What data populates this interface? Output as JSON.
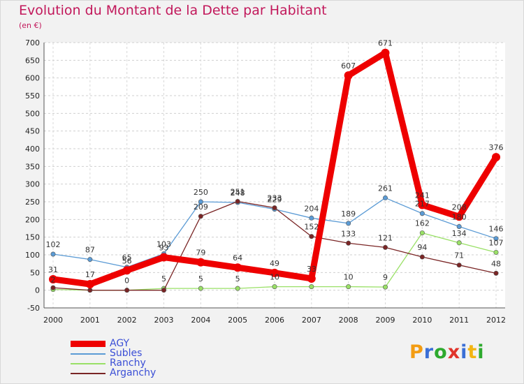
{
  "title": "Evolution du Montant de la Dette par Habitant",
  "unit": "(en €)",
  "brand": {
    "letters": [
      "P",
      "r",
      "o",
      "x",
      "i",
      "t",
      "i"
    ],
    "colors": [
      "#f39c12",
      "#3b6fd6",
      "#2eaa2e",
      "#e0342b",
      "#3b6fd6",
      "#f3b512",
      "#2eaa2e"
    ]
  },
  "chart_data": {
    "type": "line",
    "title": "Evolution du Montant de la Dette par Habitant",
    "ylabel": "(en €)",
    "xlabel": "",
    "x": [
      "2000",
      "2001",
      "2002",
      "2003",
      "2004",
      "2005",
      "2006",
      "2007",
      "2008",
      "2009",
      "2010",
      "2011",
      "2012"
    ],
    "ylim": [
      -50,
      700
    ],
    "yticks": [
      -50,
      0,
      50,
      100,
      150,
      200,
      250,
      300,
      350,
      400,
      450,
      500,
      550,
      600,
      650,
      700
    ],
    "grid": true,
    "legend": "bottom-left",
    "series": [
      {
        "name": "AGY",
        "color": "#ee0000",
        "width": 9,
        "values": [
          31,
          17,
          56,
          93,
          79,
          64,
          49,
          33,
          607,
          671,
          241,
          208,
          376
        ]
      },
      {
        "name": "Subles",
        "color": "#5b9bd5",
        "width": 1.3,
        "values": [
          102,
          87,
          65,
          103,
          250,
          248,
          229,
          204,
          189,
          261,
          217,
          180,
          146
        ]
      },
      {
        "name": "Ranchy",
        "color": "#99e066",
        "width": 1.3,
        "values": [
          2,
          0,
          0,
          5,
          5,
          5,
          10,
          10,
          10,
          9,
          162,
          134,
          107
        ]
      },
      {
        "name": "Arganchy",
        "color": "#7a2525",
        "width": 1.3,
        "values": [
          7,
          0,
          0,
          0,
          209,
          251,
          233,
          152,
          133,
          121,
          94,
          71,
          48
        ]
      }
    ],
    "data_labels": [
      {
        "series": "AGY",
        "values": [
          31,
          17,
          56,
          93,
          79,
          64,
          49,
          33,
          607,
          671,
          241,
          208,
          376
        ]
      },
      {
        "series": "Subles",
        "values": [
          102,
          87,
          65,
          103,
          250,
          248,
          229,
          204,
          189,
          261,
          217,
          180,
          146
        ]
      },
      {
        "series": "Ranchy",
        "values": [
          2,
          null,
          0,
          5,
          5,
          5,
          10,
          null,
          10,
          9,
          162,
          134,
          107
        ]
      },
      {
        "series": "Arganchy",
        "values": [
          null,
          null,
          null,
          null,
          209,
          251,
          233,
          152,
          133,
          121,
          94,
          71,
          48
        ]
      }
    ]
  }
}
